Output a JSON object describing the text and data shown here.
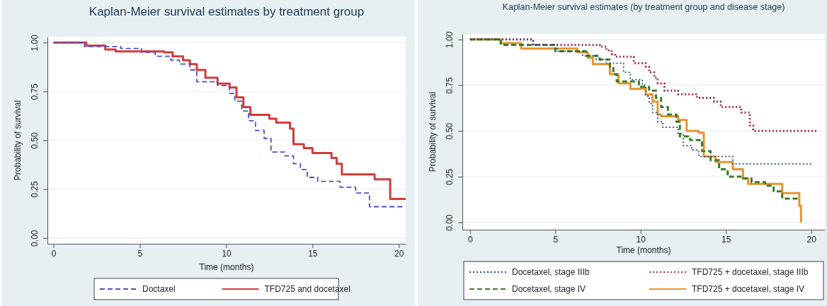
{
  "chart_data": [
    {
      "type": "step",
      "title": "Kaplan-Meier survival estimates by treatment group",
      "xlabel": "Time (months)",
      "ylabel": "Probability of survival",
      "xlim": [
        -0.35,
        20.4
      ],
      "xticks": [
        0,
        5,
        10,
        15,
        20
      ],
      "ylim": [
        -0.03,
        1.03
      ],
      "yticks": [
        {
          "value": 0,
          "label": "0.00"
        },
        {
          "value": 0.25,
          "label": "0.25"
        },
        {
          "value": 0.5,
          "label": "0.50"
        },
        {
          "value": 0.75,
          "label": "0.75"
        },
        {
          "value": 1,
          "label": "1.00"
        }
      ],
      "grid": "y",
      "legend": "bottom",
      "series": [
        {
          "name": "Doctaxel",
          "color": "#5050c8",
          "line_style": "dashed",
          "x": [
            0,
            1.8,
            3.9,
            5.1,
            5.9,
            6.8,
            7.3,
            7.9,
            8.3,
            9.5,
            10.2,
            10.5,
            10.9,
            11.3,
            11.7,
            12.2,
            12.6,
            13.4,
            13.9,
            14.3,
            14.7,
            15.3,
            16.6,
            17.5,
            18.3,
            20.2
          ],
          "values": [
            1,
            0.98,
            0.97,
            0.95,
            0.93,
            0.91,
            0.89,
            0.86,
            0.8,
            0.78,
            0.74,
            0.7,
            0.65,
            0.6,
            0.55,
            0.51,
            0.44,
            0.42,
            0.38,
            0.35,
            0.31,
            0.29,
            0.26,
            0.23,
            0.16,
            0.16
          ]
        },
        {
          "name": "TFD725 and docetaxel",
          "color": "#d43a3a",
          "line_style": "solid",
          "x": [
            0,
            1.9,
            3.0,
            3.6,
            6.4,
            6.9,
            7.5,
            7.9,
            8.3,
            8.8,
            9.5,
            10.2,
            10.6,
            11.0,
            11.4,
            12.5,
            12.9,
            13.7,
            13.9,
            14.5,
            15.0,
            16.1,
            16.4,
            16.7,
            18.6,
            19.5,
            20.4
          ],
          "values": [
            1,
            0.985,
            0.965,
            0.955,
            0.95,
            0.93,
            0.91,
            0.89,
            0.86,
            0.82,
            0.79,
            0.77,
            0.72,
            0.67,
            0.63,
            0.61,
            0.59,
            0.56,
            0.48,
            0.46,
            0.435,
            0.41,
            0.38,
            0.325,
            0.3,
            0.2,
            0.2
          ]
        }
      ]
    },
    {
      "type": "step",
      "title": "Kaplan-Meier survival estimates (by treatment group and disease stage)",
      "xlabel": "Time (months)",
      "ylabel": "Probability of survival",
      "xlim": [
        -0.45,
        20.8
      ],
      "xticks": [
        0,
        5,
        10,
        15,
        20
      ],
      "ylim": [
        -0.04,
        1.03
      ],
      "yticks": [
        {
          "value": 0,
          "label": "0.00"
        },
        {
          "value": 0.25,
          "label": "0.25"
        },
        {
          "value": 0.5,
          "label": "0.50"
        },
        {
          "value": 0.75,
          "label": "0.75"
        },
        {
          "value": 1,
          "label": "1.00"
        }
      ],
      "grid": "y",
      "legend": "bottom",
      "series": [
        {
          "name": "Docetaxel, stage IIIb",
          "color": "#1f4f86",
          "line_style": "dotted",
          "x": [
            0,
            3.7,
            5.1,
            6.6,
            7.4,
            8.0,
            9.0,
            9.4,
            10.1,
            10.3,
            10.5,
            10.7,
            11.0,
            11.3,
            12.2,
            12.5,
            13.0,
            13.4,
            15.4,
            20.0
          ],
          "values": [
            1,
            0.97,
            0.935,
            0.91,
            0.89,
            0.87,
            0.82,
            0.78,
            0.75,
            0.69,
            0.65,
            0.6,
            0.55,
            0.52,
            0.485,
            0.42,
            0.395,
            0.36,
            0.32,
            0.32
          ]
        },
        {
          "name": "TFD725 + docetaxel, stage IIIb",
          "color": "#a3335a",
          "line_style": "dotted",
          "x": [
            0,
            3.7,
            7.6,
            8.0,
            8.3,
            8.5,
            9.6,
            10.3,
            10.5,
            10.8,
            11.0,
            11.4,
            12.2,
            13.3,
            14.3,
            14.7,
            15.9,
            16.4,
            16.6,
            20.3
          ],
          "values": [
            1,
            0.97,
            0.96,
            0.94,
            0.92,
            0.905,
            0.87,
            0.85,
            0.82,
            0.79,
            0.76,
            0.72,
            0.7,
            0.68,
            0.66,
            0.63,
            0.6,
            0.53,
            0.5,
            0.5
          ]
        },
        {
          "name": "Docetaxel, stage IV",
          "color": "#3c7d24",
          "line_style": "dashed",
          "x": [
            0,
            1.8,
            5.0,
            6.8,
            7.6,
            8.2,
            8.4,
            8.6,
            9.9,
            10.5,
            10.9,
            11.2,
            11.6,
            12.1,
            12.3,
            12.9,
            13.6,
            14.1,
            14.6,
            15.1,
            16.0,
            16.5,
            17.3,
            17.8,
            18.3,
            19.2
          ],
          "values": [
            1,
            0.97,
            0.935,
            0.91,
            0.89,
            0.85,
            0.81,
            0.77,
            0.74,
            0.72,
            0.68,
            0.63,
            0.59,
            0.55,
            0.47,
            0.45,
            0.39,
            0.34,
            0.29,
            0.25,
            0.24,
            0.22,
            0.2,
            0.17,
            0.13,
            0.13
          ]
        },
        {
          "name": "TFD725 + docetaxel, stage IV",
          "color": "#e8942c",
          "line_style": "solid",
          "x": [
            0,
            1.8,
            3.0,
            6.3,
            6.9,
            7.2,
            8.2,
            8.7,
            9.4,
            10.3,
            10.7,
            11.0,
            11.2,
            12.2,
            12.7,
            13.4,
            13.7,
            14.4,
            15.4,
            16.0,
            16.3,
            18.3,
            19.3,
            19.4
          ],
          "values": [
            1,
            0.98,
            0.95,
            0.93,
            0.9,
            0.865,
            0.81,
            0.76,
            0.73,
            0.7,
            0.66,
            0.59,
            0.58,
            0.56,
            0.5,
            0.49,
            0.36,
            0.33,
            0.29,
            0.24,
            0.21,
            0.16,
            0.09,
            0
          ]
        }
      ]
    }
  ]
}
